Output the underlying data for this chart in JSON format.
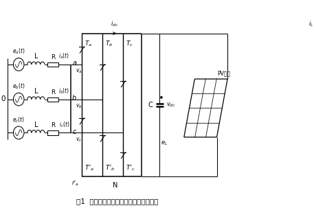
{
  "title": "图1  三相光伏并网逆变器主电路拓扑结构",
  "bg_color": "#ffffff",
  "line_color": "#000000",
  "fig_width": 4.57,
  "fig_height": 3.19,
  "dpi": 100,
  "phases": [
    {
      "e": "$e_a(t)$",
      "i": "$i_a(t)$",
      "v": "$v_a$",
      "pt": "a"
    },
    {
      "e": "$e_b(t)$",
      "i": "$i_b(t)$",
      "v": "$v_b$",
      "pt": "b"
    },
    {
      "e": "$e_c(t)$",
      "i": "$i_c(t)$",
      "v": "$v_c$",
      "pt": "c"
    }
  ],
  "sw_top": [
    "$T_a$",
    "$T_b$",
    "$T_c$"
  ],
  "sw_bot": [
    "$T'_a$",
    "$T'_b$",
    "$T'_c$"
  ],
  "labels": {
    "zero": "0",
    "L": "L",
    "R": "R",
    "N": "N",
    "C": "C",
    "plus": "$\\bullet$",
    "vdc": "$v_{dc}$",
    "eL": "$e_L$",
    "idc": "$i_{dc}$",
    "iL": "$i_L$",
    "ia_bot": "$r'_a$",
    "pv": "PV阵列"
  }
}
